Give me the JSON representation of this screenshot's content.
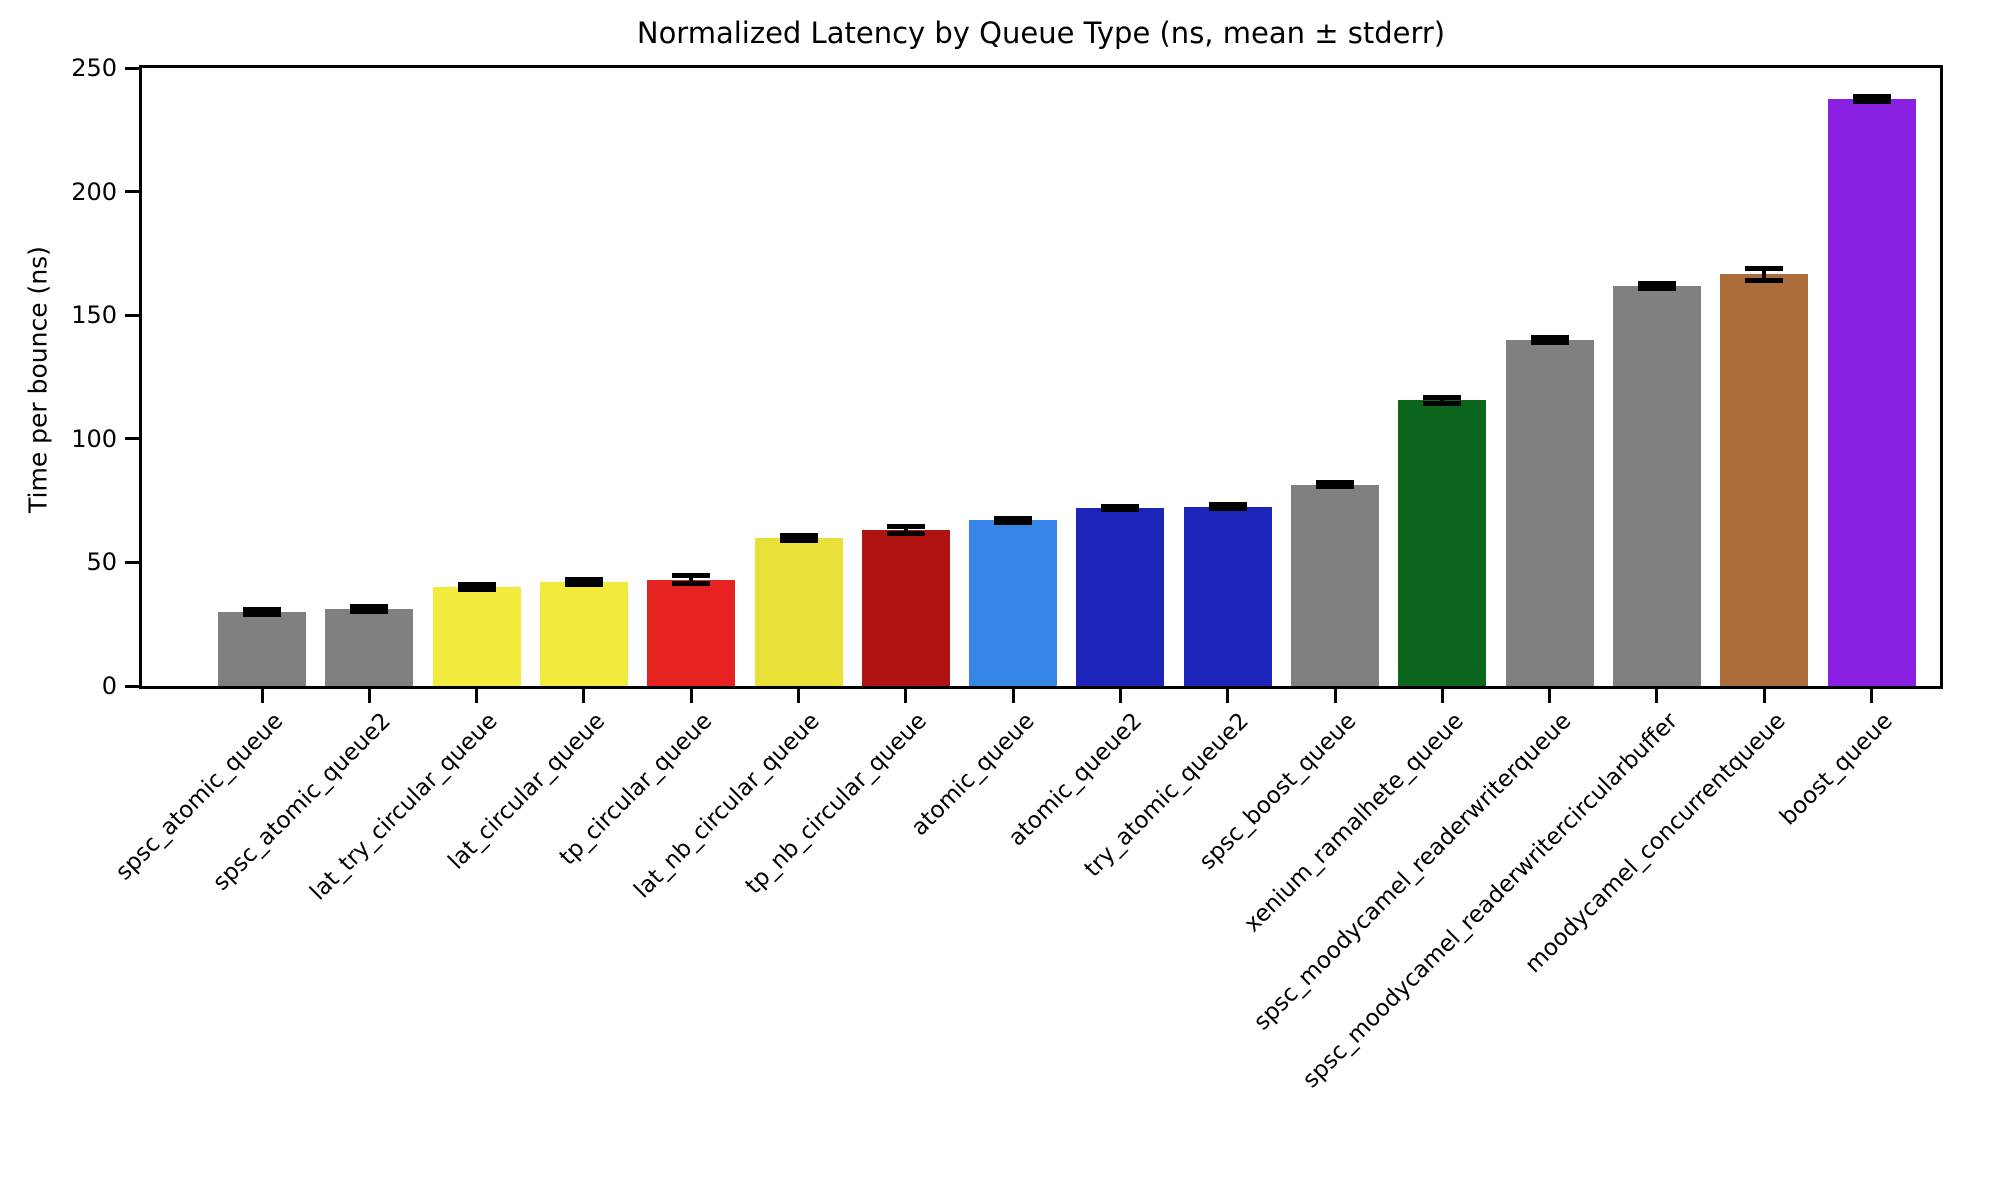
{
  "chart_data": {
    "type": "bar",
    "title": "Normalized Latency by Queue Type (ns, mean ± stderr)",
    "ylabel": "Time per bounce (ns)",
    "xlabel": "",
    "ylim": [
      0,
      250
    ],
    "yticks": [
      0,
      50,
      100,
      150,
      200,
      250
    ],
    "grid": false,
    "legend": "none",
    "error_bars": "stderr, black caps",
    "categories": [
      "spsc_atomic_queue",
      "spsc_atomic_queue2",
      "lat_try_circular_queue",
      "lat_circular_queue",
      "tp_circular_queue",
      "lat_nb_circular_queue",
      "tp_nb_circular_queue",
      "atomic_queue",
      "atomic_queue2",
      "try_atomic_queue2",
      "spsc_boost_queue",
      "xenium_ramalhete_queue",
      "spsc_moodycamel_readerwriterqueue",
      "spsc_moodycamel_readerwritercircularbuffer",
      "moodycamel_concurrentqueue",
      "boost_queue"
    ],
    "values": [
      30,
      31,
      40,
      42,
      43,
      60,
      63,
      67,
      72,
      72.5,
      81.5,
      115.5,
      140,
      162,
      166.5,
      237.5
    ],
    "stderr": [
      1,
      1,
      1,
      1,
      1.5,
      1,
      1.5,
      0.8,
      0.8,
      0.8,
      0.8,
      1.2,
      1,
      1,
      2.5,
      1
    ],
    "bar_colors": [
      "#808080",
      "#808080",
      "#f2ea3c",
      "#f2ea3c",
      "#e62320",
      "#e9e138",
      "#b11212",
      "#3585e6",
      "#1c25b8",
      "#1c25b8",
      "#808080",
      "#0d661e",
      "#808080",
      "#808080",
      "#ad6d3b",
      "#8a20e2"
    ],
    "axis_color": "#000000",
    "background_color": "#ffffff"
  }
}
